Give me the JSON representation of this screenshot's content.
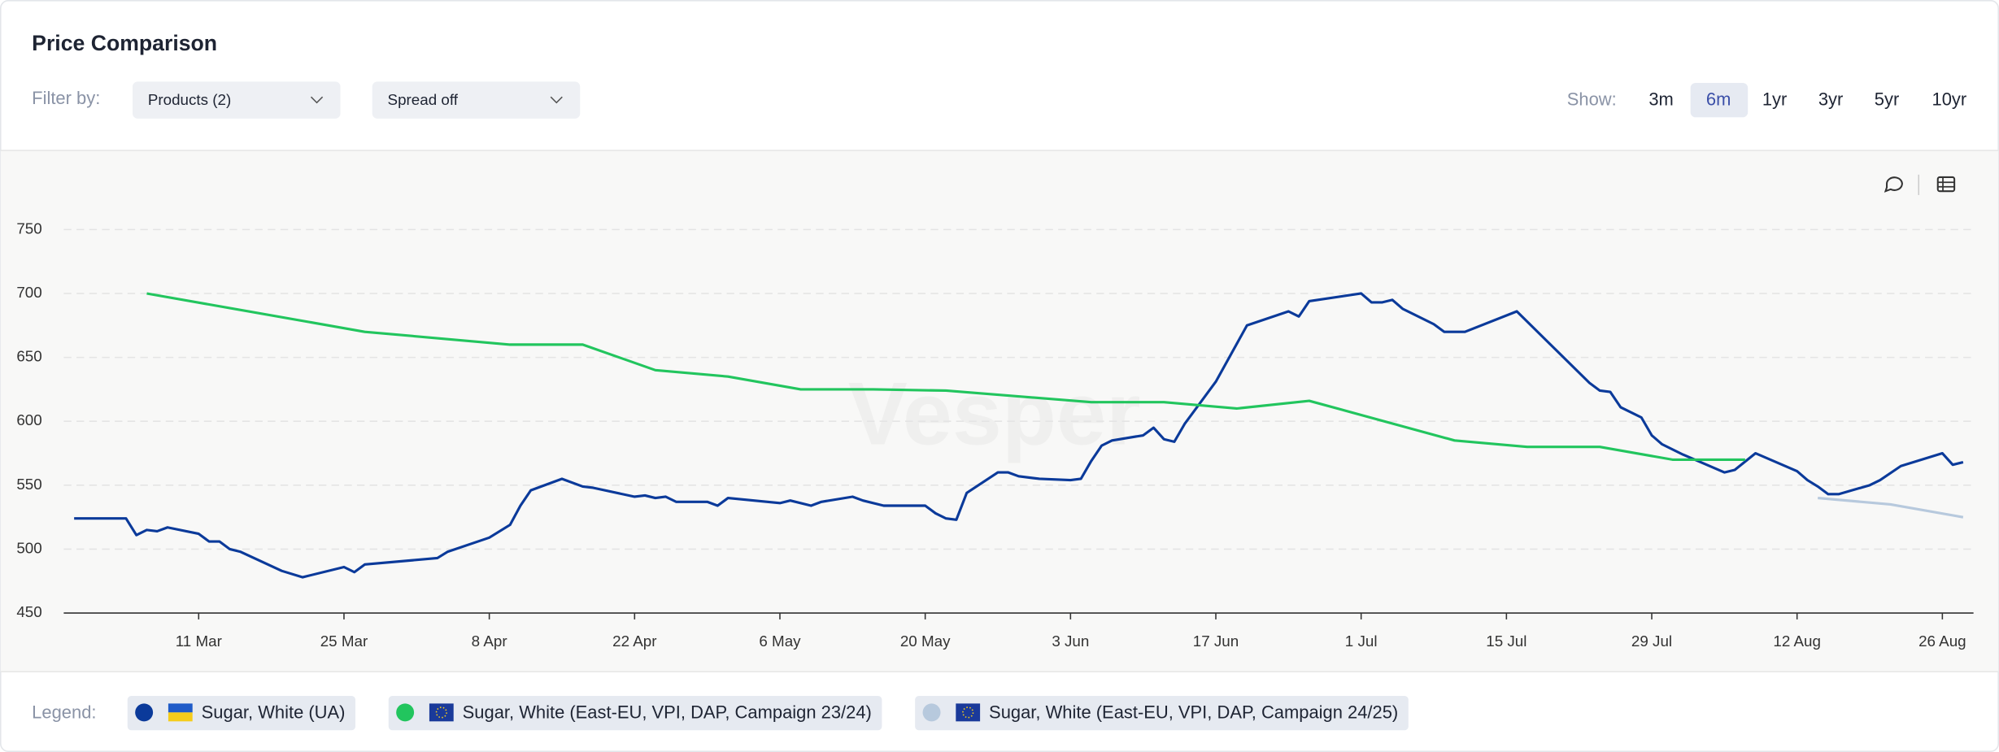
{
  "header": {
    "title": "Price Comparison",
    "filter_label": "Filter by:",
    "filters": [
      "Products (2)",
      "Spread off"
    ],
    "show_label": "Show:",
    "ranges": [
      "3m",
      "6m",
      "1yr",
      "3yr",
      "5yr",
      "10yr"
    ]
  },
  "legend_label": "Legend:",
  "watermark": "Vesper",
  "chart_data": {
    "type": "line",
    "xlim": [
      "27 Feb",
      "29 Aug"
    ],
    "xticks": [
      "11 Mar",
      "25 Mar",
      "8 Apr",
      "22 Apr",
      "6 May",
      "20 May",
      "3 Jun",
      "17 Jun",
      "1 Jul",
      "15 Jul",
      "29 Jul",
      "12 Aug",
      "26 Aug"
    ],
    "ylim": [
      450,
      780
    ],
    "yticks": [
      450,
      500,
      550,
      600,
      650,
      700,
      750
    ],
    "grid": true,
    "series": [
      {
        "name": "Sugar, White (UA)",
        "color": "#0b3a9a",
        "x": [
          "28 Feb",
          "4 Mar",
          "5 Mar",
          "6 Mar",
          "7 Mar",
          "8 Mar",
          "11 Mar",
          "12 Mar",
          "13 Mar",
          "14 Mar",
          "15 Mar",
          "19 Mar",
          "21 Mar",
          "25 Mar",
          "26 Mar",
          "27 Mar",
          "3 Apr",
          "4 Apr",
          "8 Apr",
          "10 Apr",
          "11 Apr",
          "12 Apr",
          "15 Apr",
          "17 Apr",
          "18 Apr",
          "22 Apr",
          "23 Apr",
          "24 Apr",
          "25 Apr",
          "26 Apr",
          "29 Apr",
          "30 Apr",
          "1 May",
          "6 May",
          "7 May",
          "9 May",
          "10 May",
          "13 May",
          "14 May",
          "16 May",
          "20 May",
          "21 May",
          "22 May",
          "23 May",
          "24 May",
          "27 May",
          "28 May",
          "29 May",
          "31 May",
          "3 Jun",
          "4 Jun",
          "5 Jun",
          "6 Jun",
          "7 Jun",
          "10 Jun",
          "11 Jun",
          "12 Jun",
          "13 Jun",
          "14 Jun",
          "17 Jun",
          "20 Jun",
          "24 Jun",
          "25 Jun",
          "26 Jun",
          "1 Jul",
          "2 Jul",
          "3 Jul",
          "4 Jul",
          "5 Jul",
          "8 Jul",
          "9 Jul",
          "11 Jul",
          "16 Jul",
          "23 Jul",
          "24 Jul",
          "25 Jul",
          "26 Jul",
          "28 Jul",
          "29 Jul",
          "30 Jul",
          "1 Aug",
          "5 Aug",
          "6 Aug",
          "8 Aug",
          "12 Aug",
          "13 Aug",
          "14 Aug",
          "15 Aug",
          "16 Aug",
          "19 Aug",
          "20 Aug",
          "22 Aug",
          "26 Aug",
          "27 Aug",
          "28 Aug"
        ],
        "values": [
          524,
          524,
          511,
          515,
          514,
          517,
          512,
          506,
          506,
          500,
          498,
          483,
          478,
          486,
          482,
          488,
          493,
          498,
          509,
          519,
          534,
          546,
          555,
          549,
          548,
          541,
          542,
          540,
          541,
          537,
          537,
          534,
          540,
          536,
          538,
          534,
          537,
          541,
          538,
          534,
          534,
          528,
          524,
          523,
          544,
          560,
          560,
          557,
          555,
          554,
          555,
          569,
          581,
          585,
          589,
          595,
          586,
          584,
          598,
          631,
          675,
          686,
          682,
          694,
          700,
          693,
          693,
          695,
          688,
          676,
          670,
          670,
          686,
          630,
          624,
          623,
          611,
          603,
          589,
          582,
          574,
          560,
          562,
          575,
          561,
          554,
          549,
          543,
          543,
          550,
          554,
          565,
          575,
          566,
          568
        ]
      },
      {
        "name": "Sugar, White (East-EU, VPI, DAP, Campaign 23/24)",
        "color": "#22c55e",
        "x": [
          "6 Mar",
          "27 Mar",
          "10 Apr",
          "17 Apr",
          "24 Apr",
          "1 May",
          "8 May",
          "15 May",
          "22 May",
          "5 Jun",
          "12 Jun",
          "19 Jun",
          "26 Jun",
          "10 Jul",
          "17 Jul",
          "24 Jul",
          "31 Jul",
          "7 Aug"
        ],
        "values": [
          700,
          670,
          660,
          660,
          640,
          635,
          625,
          625,
          624,
          615,
          615,
          610,
          616,
          585,
          580,
          580,
          570,
          570
        ]
      },
      {
        "name": "Sugar, White (East-EU, VPI, DAP, Campaign 24/25)",
        "color": "#b7c9dd",
        "x": [
          "14 Aug",
          "21 Aug",
          "28 Aug"
        ],
        "values": [
          540,
          535,
          525
        ]
      }
    ]
  }
}
